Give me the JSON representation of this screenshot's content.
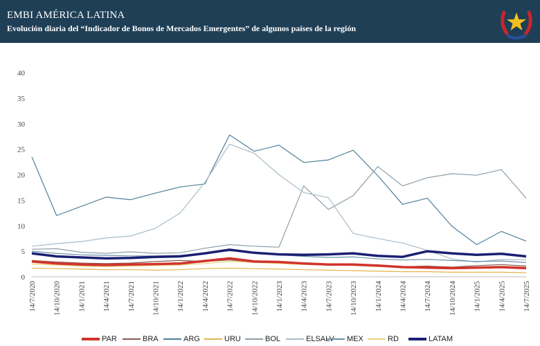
{
  "header": {
    "title": "EMBI AMÉRICA LATINA",
    "subtitle": "Evolución diaria del “Indicador de Bonos de Mercados Emergentes” de algunos países de la región",
    "logo_icon": "paraguay-coat-of-arms-icon"
  },
  "chart_data": {
    "type": "line",
    "ylim": [
      0,
      40
    ],
    "y_ticks": [
      "0",
      "5",
      "10",
      "15",
      "20",
      "25",
      "30",
      "35",
      "40"
    ],
    "x_ticks": [
      "14/7/2020",
      "14/10/2020",
      "14/1/2021",
      "14/4/2021",
      "14/7/2021",
      "14/10/2021",
      "14/1/2022",
      "14/4/2022",
      "14/7/2022",
      "14/10/2022",
      "14/1/2023",
      "14/4/2023",
      "14/7/2023",
      "14/10/2023",
      "14/1/2024",
      "14/4/2024",
      "14/7/2024",
      "14/10/2024",
      "14/1/2025",
      "14/4/2025",
      "14/7/2025"
    ],
    "grid": false,
    "legend": "bottom",
    "series": [
      {
        "name": "PAR",
        "color": "#d0342c",
        "width": 3.5,
        "values": [
          3.0,
          2.6,
          2.4,
          2.3,
          2.4,
          2.5,
          2.6,
          3.1,
          3.6,
          3.0,
          2.9,
          2.6,
          2.4,
          2.4,
          2.2,
          1.9,
          1.8,
          1.7,
          1.8,
          1.9,
          1.7
        ]
      },
      {
        "name": "BRA",
        "color": "#8a5a4e",
        "width": 1.2,
        "values": [
          3.2,
          2.9,
          2.7,
          2.6,
          2.7,
          3.0,
          3.2,
          3.0,
          3.3,
          2.9,
          2.8,
          2.7,
          2.3,
          2.4,
          2.1,
          2.0,
          2.1,
          1.9,
          2.2,
          2.4,
          2.1
        ]
      },
      {
        "name": "ARG",
        "color": "#4f7f99",
        "width": 1.2,
        "values": [
          23.5,
          12.0,
          13.8,
          15.6,
          15.1,
          16.4,
          17.6,
          18.2,
          27.8,
          24.6,
          25.8,
          22.4,
          22.9,
          24.8,
          19.8,
          14.2,
          15.4,
          9.9,
          6.3,
          8.9,
          7.0
        ]
      },
      {
        "name": "URU",
        "color": "#e4b44a",
        "width": 1.2,
        "values": [
          1.7,
          1.6,
          1.5,
          1.4,
          1.4,
          1.3,
          1.4,
          1.6,
          1.7,
          1.6,
          1.5,
          1.4,
          1.3,
          1.2,
          1.1,
          1.0,
          1.0,
          0.9,
          0.9,
          0.9,
          0.8
        ]
      },
      {
        "name": "BOL",
        "color": "#8c9ea8",
        "width": 1.2,
        "values": [
          5.4,
          5.5,
          4.8,
          4.6,
          4.9,
          4.6,
          4.7,
          5.6,
          6.3,
          6.0,
          5.8,
          17.8,
          13.2,
          15.9,
          21.6,
          17.8,
          19.4,
          20.2,
          19.9,
          21.0,
          15.4
        ]
      },
      {
        "name": "ELSALV",
        "color": "#a8bcc8",
        "width": 1.2,
        "values": [
          6.0,
          6.5,
          6.9,
          7.6,
          8.0,
          9.5,
          12.5,
          18.5,
          26.0,
          24.2,
          20.0,
          16.5,
          15.5,
          8.5,
          7.5,
          6.6,
          5.2,
          3.5,
          2.9,
          3.4,
          3.3
        ]
      },
      {
        "name": "MEX",
        "color": "#6a8fa6",
        "width": 1.2,
        "values": [
          5.0,
          4.6,
          4.3,
          4.2,
          4.1,
          4.1,
          4.2,
          4.6,
          5.1,
          4.8,
          4.3,
          4.0,
          3.8,
          3.9,
          3.5,
          3.3,
          3.4,
          3.2,
          3.0,
          3.1,
          2.8
        ]
      },
      {
        "name": "RD",
        "color": "#ead27a",
        "width": 1.2,
        "values": [
          2.5,
          2.3,
          2.1,
          2.0,
          2.1,
          2.2,
          2.3,
          2.6,
          3.0,
          2.8,
          2.6,
          2.4,
          2.3,
          2.2,
          2.0,
          1.9,
          1.9,
          1.8,
          1.9,
          2.0,
          1.8
        ]
      },
      {
        "name": "LATAM",
        "color": "#1a1f72",
        "width": 3.5,
        "values": [
          4.6,
          4.0,
          3.8,
          3.6,
          3.7,
          3.9,
          4.0,
          4.6,
          5.3,
          4.7,
          4.4,
          4.3,
          4.4,
          4.6,
          4.1,
          3.9,
          5.0,
          4.6,
          4.3,
          4.5,
          4.0
        ]
      }
    ]
  }
}
